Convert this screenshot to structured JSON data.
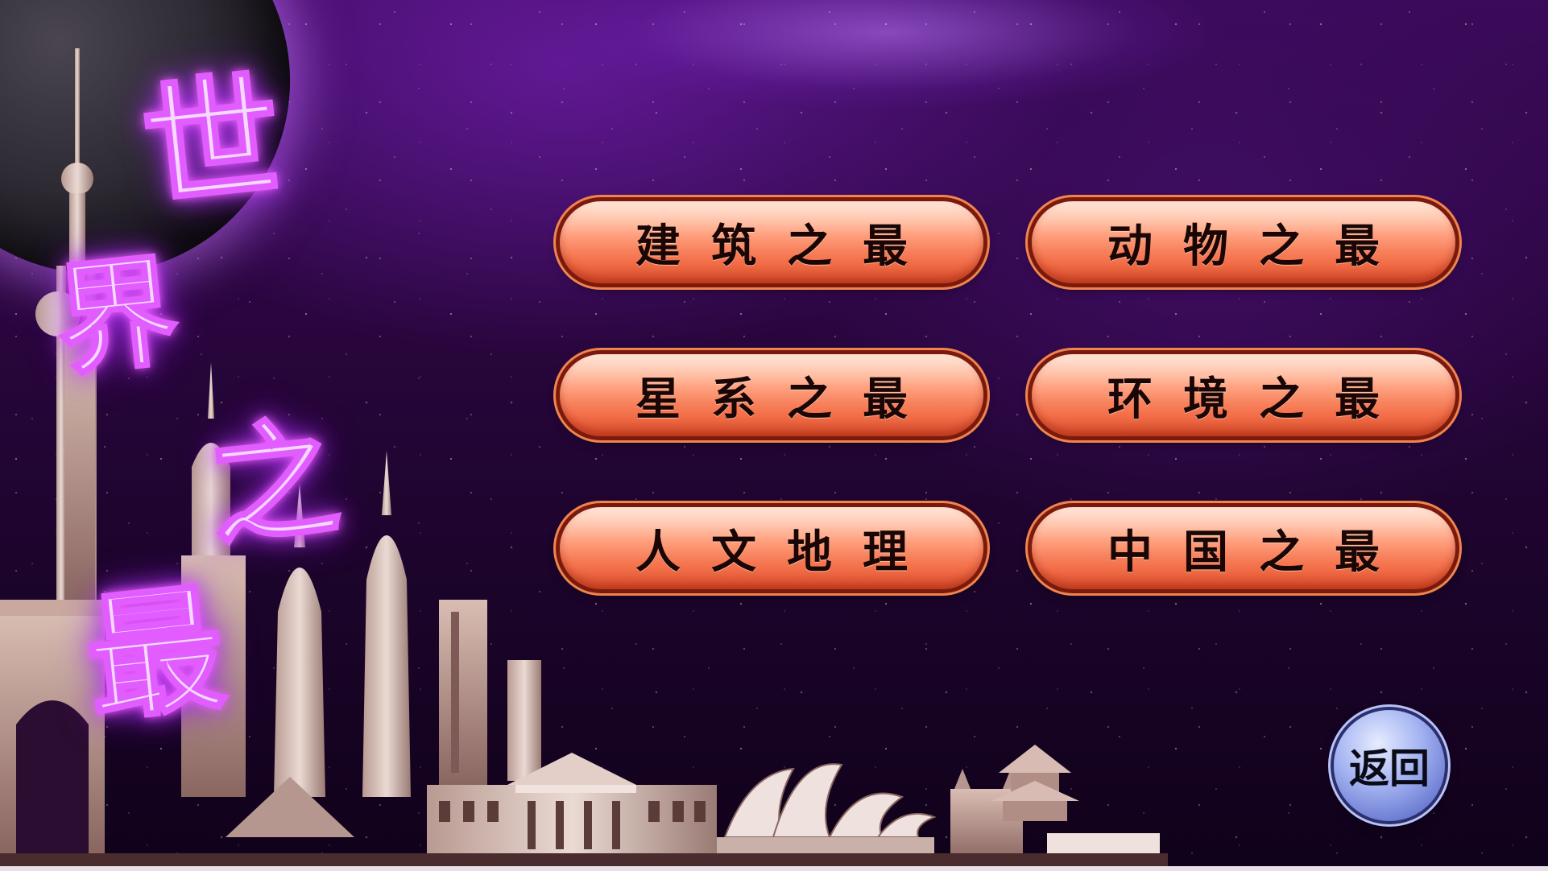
{
  "title": {
    "chars": [
      "世",
      "界",
      "之",
      "最"
    ]
  },
  "menu": {
    "items": [
      {
        "label": "建筑之最"
      },
      {
        "label": "动物之最"
      },
      {
        "label": "星系之最"
      },
      {
        "label": "环境之最"
      },
      {
        "label": "人文地理"
      },
      {
        "label": "中国之最"
      }
    ]
  },
  "back_button": {
    "label": "返回"
  },
  "colors": {
    "background": "#2a063f",
    "button_fill": "#ff9d7a",
    "button_border": "#7a1a0c",
    "title_glow": "#e25dff",
    "back_button": "#a7b6f2"
  },
  "icons": {
    "planet": "moon-planet-icon",
    "skyline": "world-landmarks-skyline-illustration"
  }
}
